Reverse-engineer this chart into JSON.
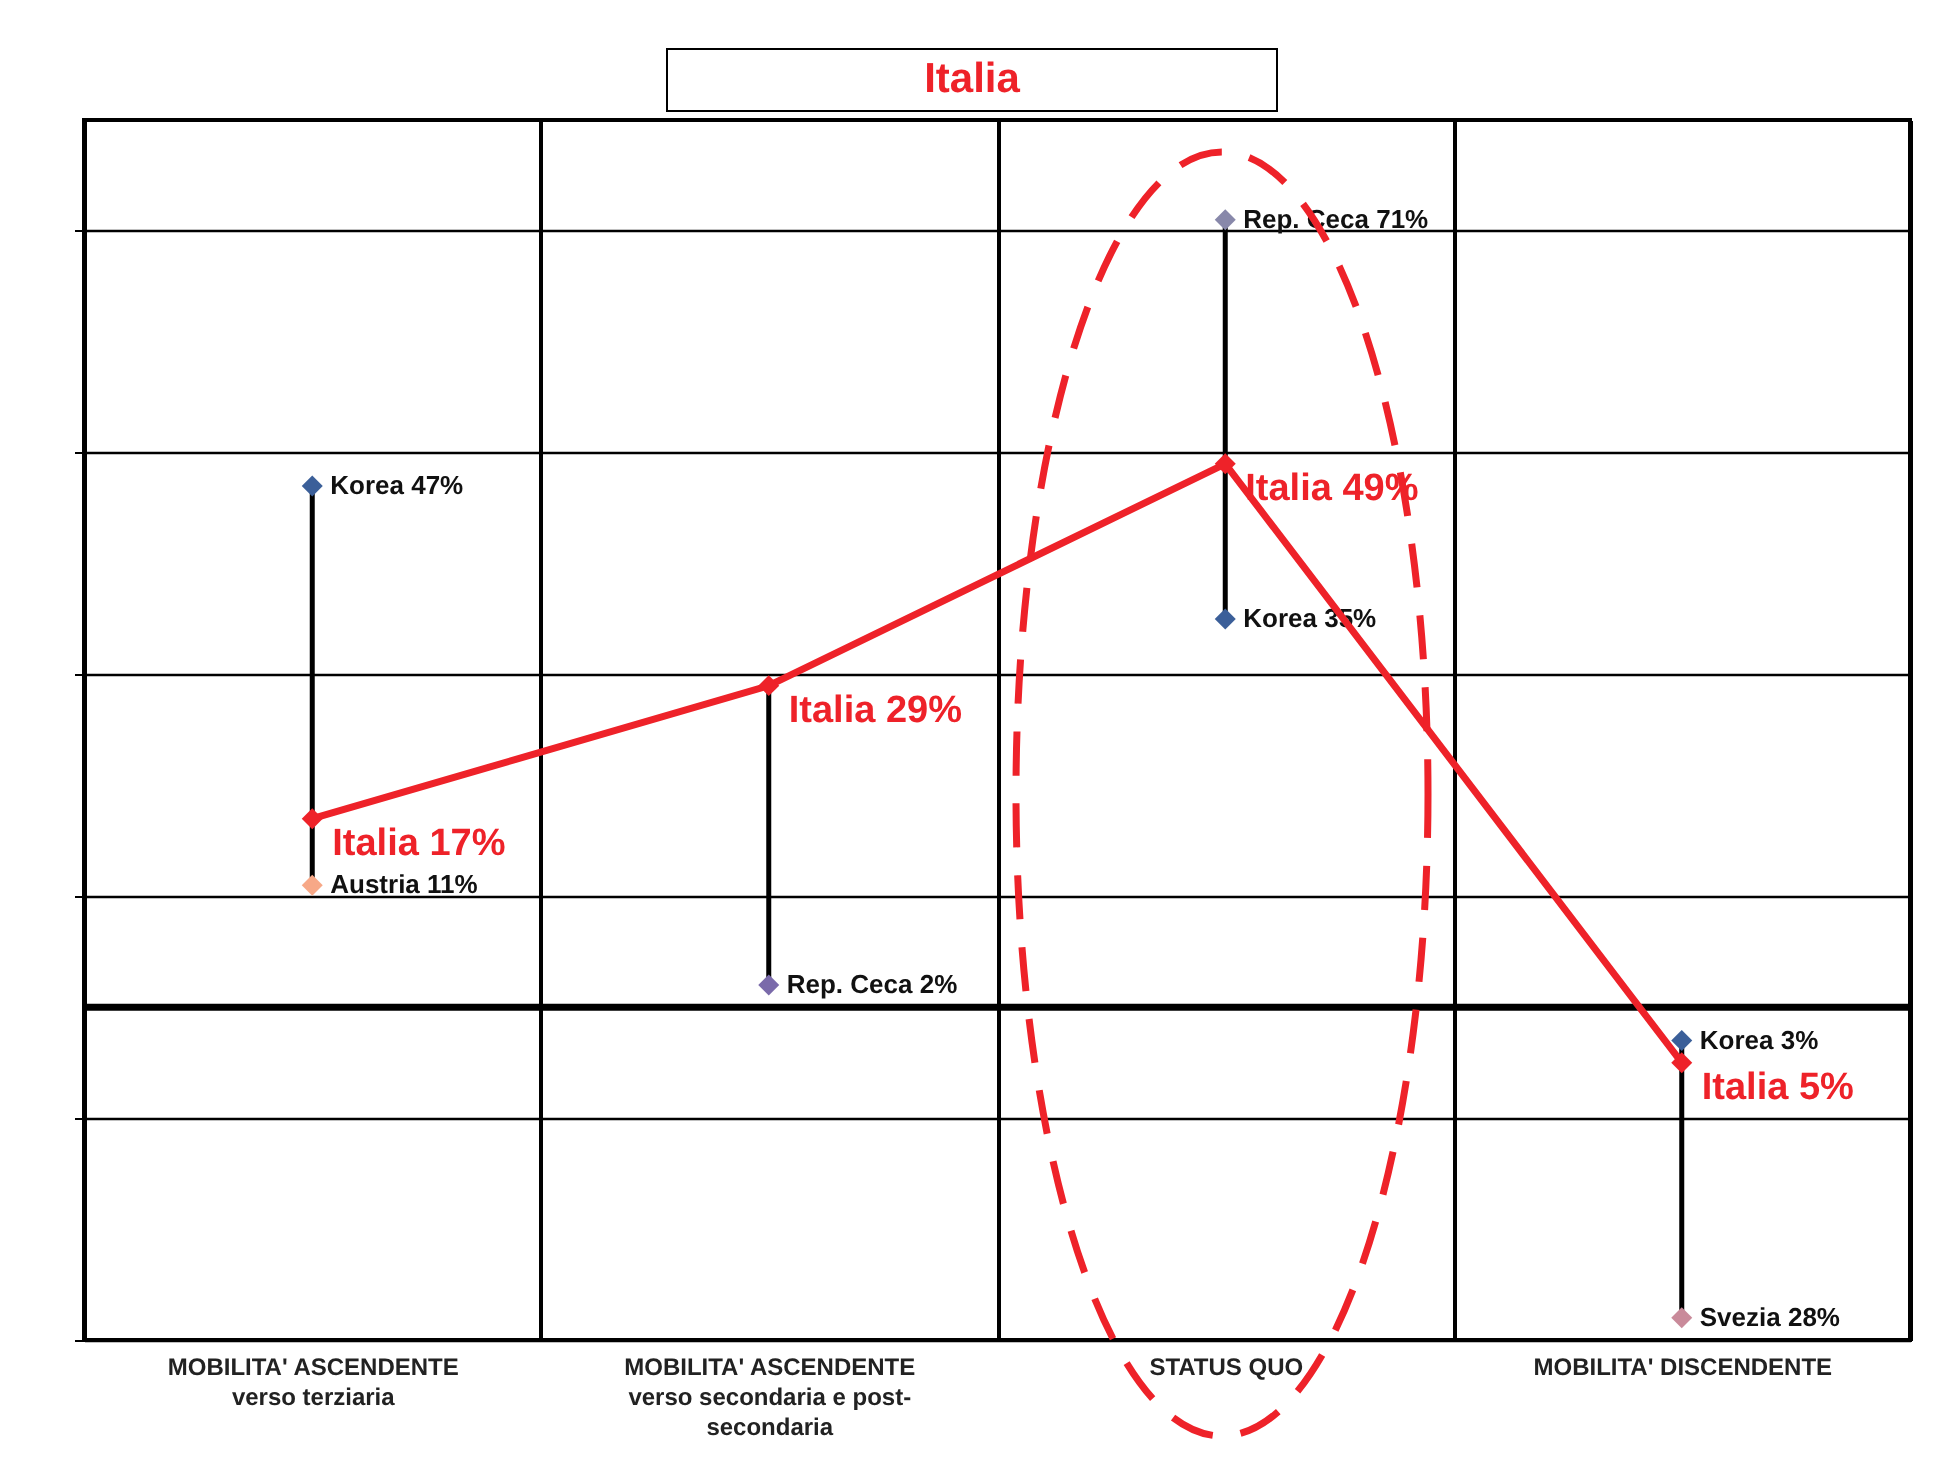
{
  "chart_data": {
    "type": "line",
    "title": "Italia",
    "categories": [
      "MOBILITA' ASCENDENTE\nverso terziaria",
      "MOBILITA' ASCENDENTE\nverso secondaria e post-\nsecondaria",
      "STATUS QUO",
      "MOBILITA' DISCENDENTE"
    ],
    "ylim": [
      -30,
      80
    ],
    "yticks": [
      {
        "value": -30,
        "label": null
      },
      {
        "value": -10,
        "label": null
      },
      {
        "value": 10,
        "label": null
      },
      {
        "value": 30,
        "label": null
      },
      {
        "value": 50,
        "label": null
      },
      {
        "value": 70,
        "label": null
      }
    ],
    "tick_labels": "x",
    "grid": true,
    "ref_lines": [
      {
        "axis": "y",
        "value": 0,
        "color": "#000000"
      }
    ],
    "series": [
      {
        "type": "line",
        "color": "#000000",
        "x": [
          "MOBILITA' ASCENDENTE\nverso terziaria",
          "MOBILITA' ASCENDENTE\nverso terziaria"
        ],
        "values": [
          11,
          47
        ],
        "marker": "none"
      },
      {
        "type": "line",
        "color": "#000000",
        "x": [
          "MOBILITA' ASCENDENTE\nverso secondaria e post-\nsecondaria",
          "MOBILITA' ASCENDENTE\nverso secondaria e post-\nsecondaria"
        ],
        "values": [
          2,
          29
        ],
        "marker": "none"
      },
      {
        "type": "line",
        "color": "#000000",
        "x": [
          "STATUS QUO",
          "STATUS QUO"
        ],
        "values": [
          35,
          71
        ],
        "marker": "none"
      },
      {
        "type": "line",
        "color": "#000000",
        "x": [
          "MOBILITA' DISCENDENTE",
          "MOBILITA' DISCENDENTE"
        ],
        "values": [
          -28,
          -3
        ],
        "marker": "none"
      },
      {
        "type": "scatter",
        "x": [
          "MOBILITA' ASCENDENTE\nverso terziaria",
          "STATUS QUO",
          "MOBILITA' DISCENDENTE"
        ],
        "values": [
          47,
          71,
          -3
        ],
        "colors": [
          "#3b5f99",
          "#8888aa",
          "#3b5f99"
        ],
        "marker": "diamond",
        "value_labels": [
          "Korea 47%",
          "Rep. Ceca 71%",
          "Korea 3%"
        ]
      },
      {
        "type": "scatter",
        "x": [
          "MOBILITA' ASCENDENTE\nverso terziaria",
          "MOBILITA' ASCENDENTE\nverso secondaria e post-\nsecondaria",
          "STATUS QUO",
          "MOBILITA' DISCENDENTE"
        ],
        "values": [
          11,
          2,
          35,
          -28
        ],
        "colors": [
          "#f7a887",
          "#7a6aaa",
          "#3b5f99",
          "#c98a9a"
        ],
        "marker": "diamond",
        "value_labels": [
          "Austria 11%",
          "Rep. Ceca 2%",
          "Korea 35%",
          "Svezia 28%"
        ]
      },
      {
        "color": "#ee2229",
        "values": [
          17,
          29,
          49,
          -5
        ],
        "marker": "diamond",
        "value_labels": [
          "Italia 17%",
          "Italia 29%",
          "Italia 49%",
          "Italia 5%"
        ]
      }
    ]
  }
}
